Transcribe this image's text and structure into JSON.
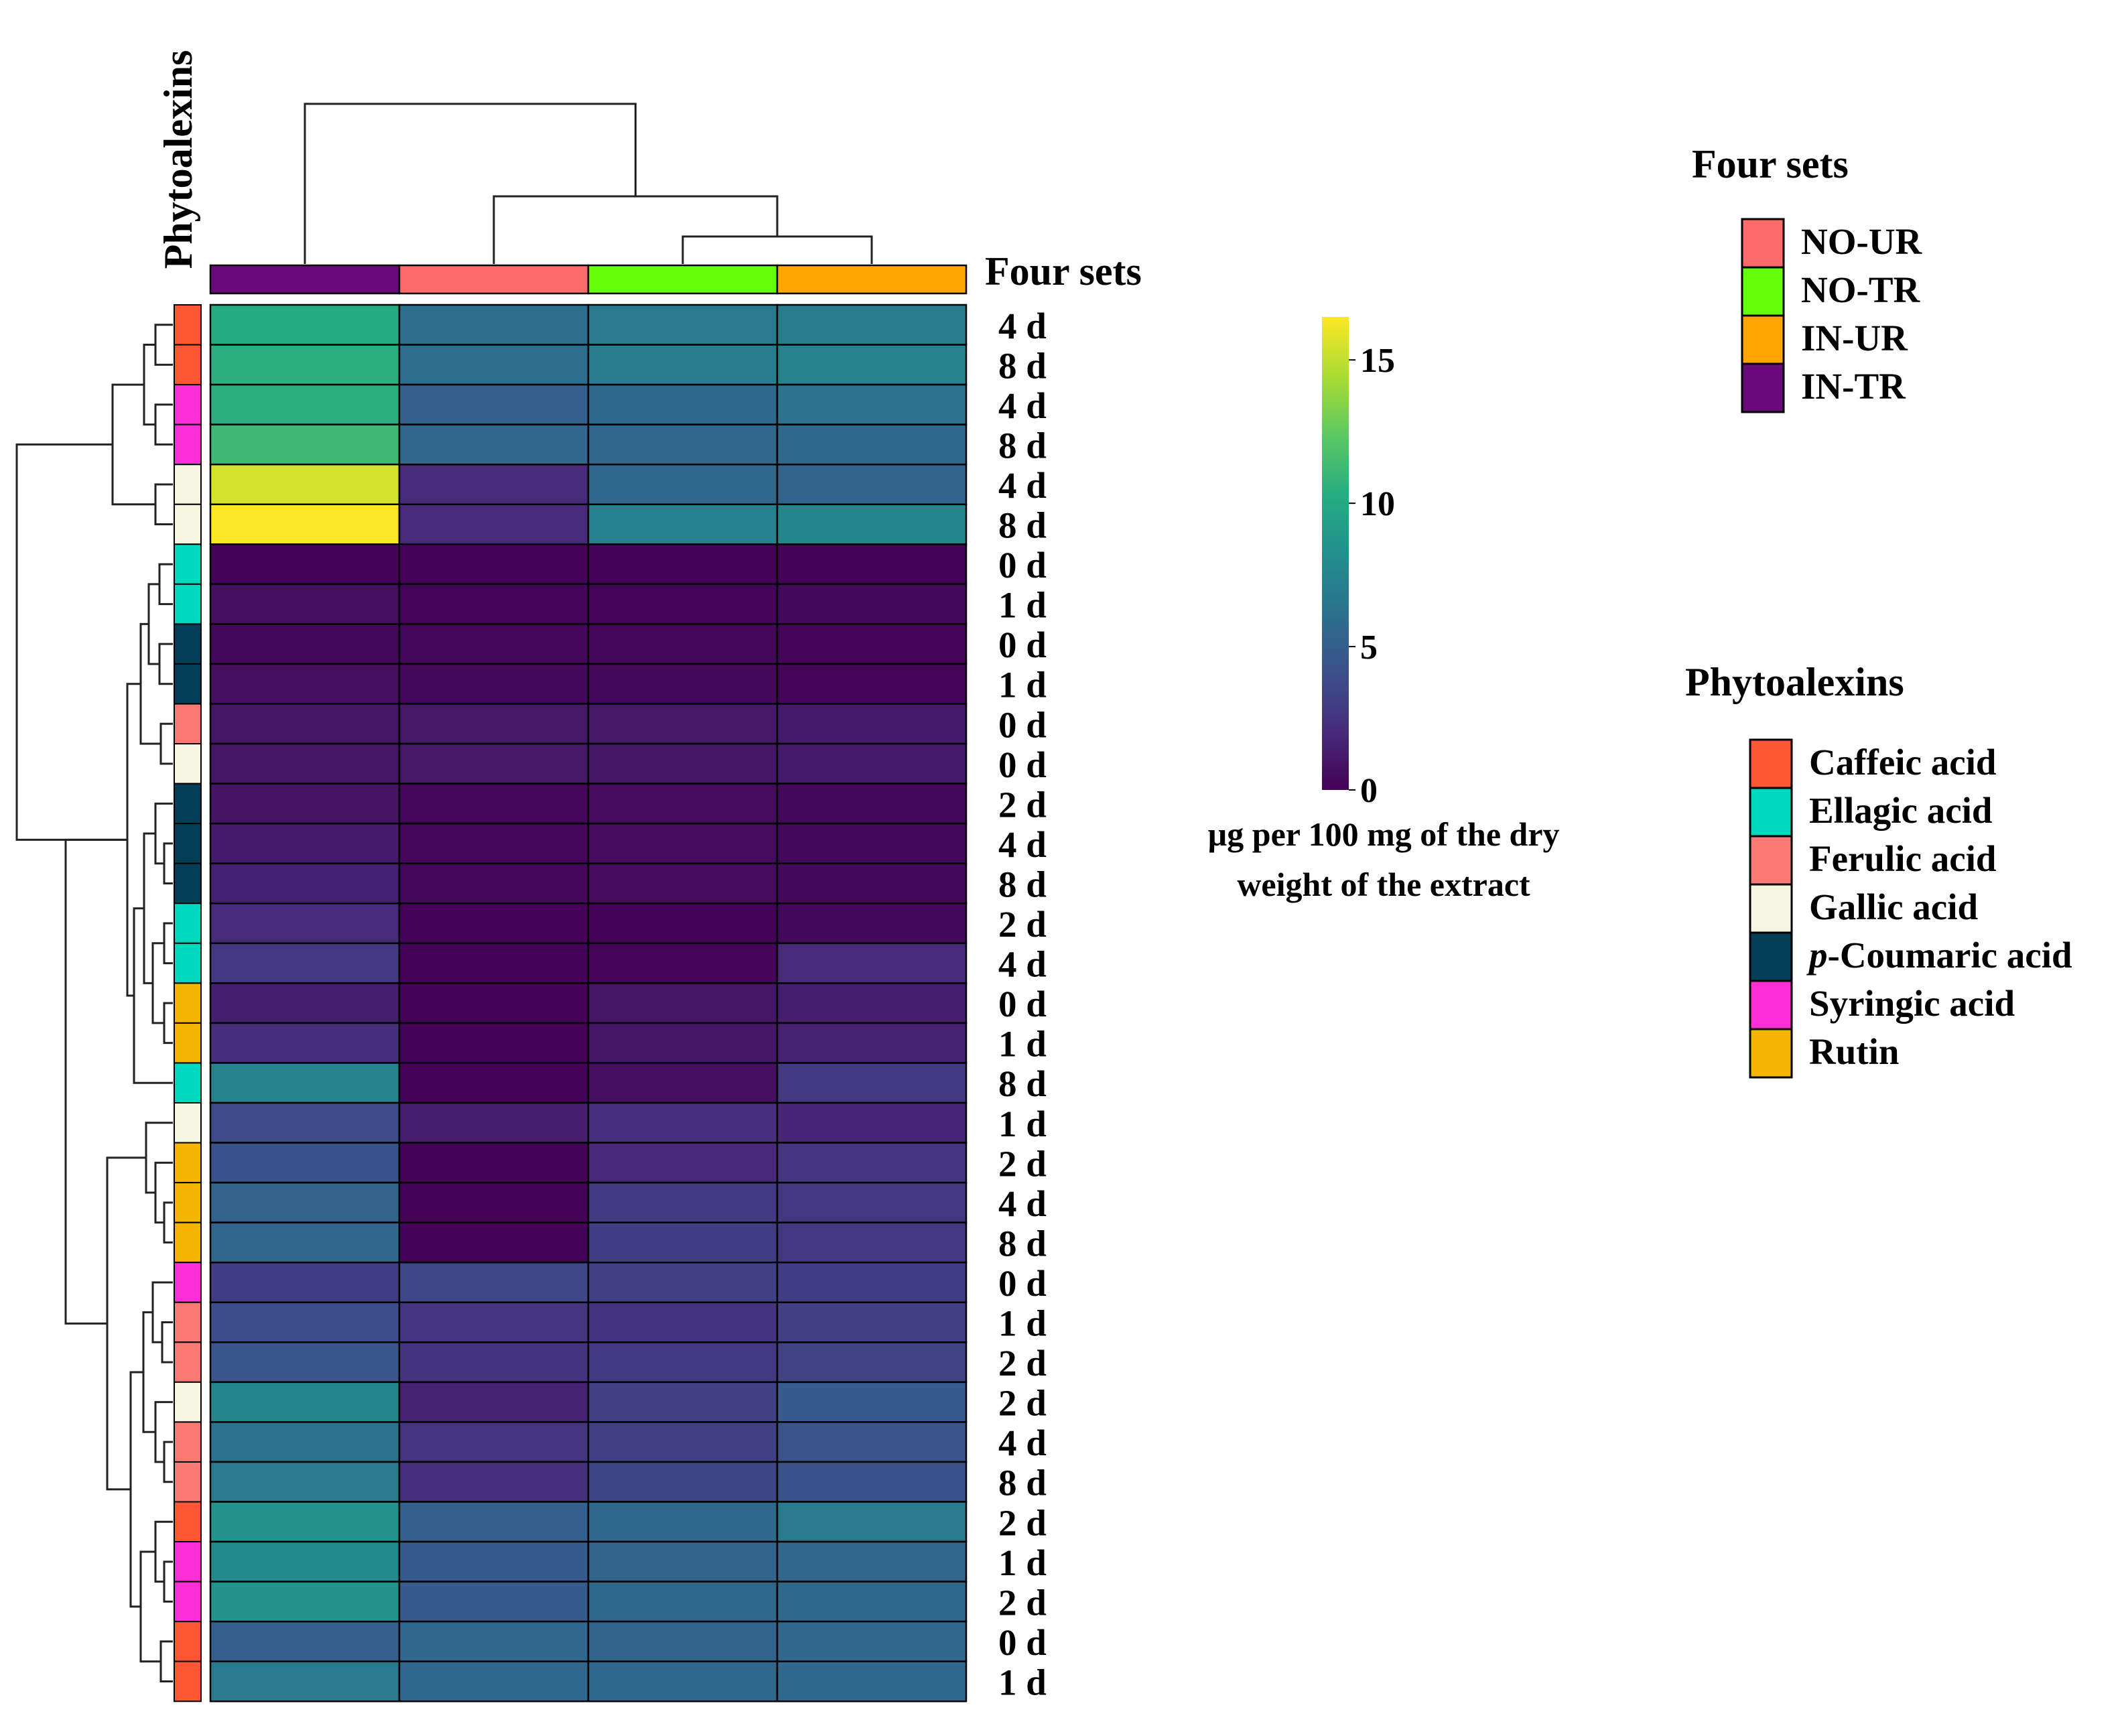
{
  "chart_data": {
    "type": "heatmap",
    "columns": [
      {
        "label": "IN-TR",
        "group_color": "#6A0A7A"
      },
      {
        "label": "NO-UR",
        "group_color": "#FF6B6B"
      },
      {
        "label": "NO-TR",
        "group_color": "#66FF0A"
      },
      {
        "label": "IN-UR",
        "group_color": "#FFA500"
      }
    ],
    "column_annotation_title": "Four sets",
    "row_annotation_title": "Phytoalexins",
    "rows": [
      {
        "label": "4 d",
        "compound": "Caffeic acid",
        "values": [
          10.2,
          6.0,
          6.8,
          6.9
        ]
      },
      {
        "label": "8 d",
        "compound": "Caffeic acid",
        "values": [
          10.5,
          6.0,
          7.0,
          7.3
        ]
      },
      {
        "label": "4 d",
        "compound": "Syringic acid",
        "values": [
          10.5,
          5.0,
          5.6,
          6.3
        ]
      },
      {
        "label": "8 d",
        "compound": "Syringic acid",
        "values": [
          11.2,
          5.5,
          5.5,
          5.6
        ]
      },
      {
        "label": "4 d",
        "compound": "Gallic acid",
        "values": [
          15.5,
          2.0,
          5.6,
          5.3
        ]
      },
      {
        "label": "8 d",
        "compound": "Gallic acid",
        "values": [
          16.5,
          2.0,
          7.2,
          7.6
        ]
      },
      {
        "label": "0 d",
        "compound": "Ellagic acid",
        "values": [
          0.1,
          0.1,
          0.1,
          0.1
        ]
      },
      {
        "label": "1 d",
        "compound": "Ellagic acid",
        "values": [
          0.6,
          0.2,
          0.2,
          0.4
        ]
      },
      {
        "label": "0 d",
        "compound": "p-Coumaric acid",
        "values": [
          0.4,
          0.3,
          0.3,
          0.2
        ]
      },
      {
        "label": "1 d",
        "compound": "p-Coumaric acid",
        "values": [
          0.6,
          0.4,
          0.4,
          0.2
        ]
      },
      {
        "label": "0 d",
        "compound": "Ferulic acid",
        "values": [
          1.0,
          1.1,
          1.1,
          1.2
        ]
      },
      {
        "label": "0 d",
        "compound": "Gallic acid",
        "values": [
          1.0,
          1.1,
          1.0,
          1.2
        ]
      },
      {
        "label": "2 d",
        "compound": "p-Coumaric acid",
        "values": [
          0.9,
          0.3,
          0.5,
          0.4
        ]
      },
      {
        "label": "4 d",
        "compound": "p-Coumaric acid",
        "values": [
          1.2,
          0.3,
          0.5,
          0.4
        ]
      },
      {
        "label": "8 d",
        "compound": "p-Coumaric acid",
        "values": [
          1.5,
          0.3,
          0.5,
          0.4
        ]
      },
      {
        "label": "2 d",
        "compound": "Ellagic acid",
        "values": [
          2.0,
          0.1,
          0.1,
          0.4
        ]
      },
      {
        "label": "4 d",
        "compound": "Ellagic acid",
        "values": [
          2.7,
          0.1,
          0.2,
          2.0
        ]
      },
      {
        "label": "0 d",
        "compound": "Rutin",
        "values": [
          1.4,
          0.1,
          1.0,
          1.4
        ]
      },
      {
        "label": "1 d",
        "compound": "Rutin",
        "values": [
          2.2,
          0.1,
          1.0,
          1.6
        ]
      },
      {
        "label": "8 d",
        "compound": "Ellagic acid",
        "values": [
          7.3,
          0.1,
          0.6,
          2.8
        ]
      },
      {
        "label": "1 d",
        "compound": "Gallic acid",
        "values": [
          3.8,
          1.4,
          2.3,
          1.8
        ]
      },
      {
        "label": "2 d",
        "compound": "Rutin",
        "values": [
          4.2,
          0.1,
          1.9,
          2.6
        ]
      },
      {
        "label": "4 d",
        "compound": "Rutin",
        "values": [
          5.2,
          0.1,
          2.9,
          2.7
        ]
      },
      {
        "label": "8 d",
        "compound": "Rutin",
        "values": [
          5.5,
          0.1,
          3.0,
          2.7
        ]
      },
      {
        "label": "0 d",
        "compound": "Syringic acid",
        "values": [
          3.0,
          3.6,
          3.2,
          3.0
        ]
      },
      {
        "label": "1 d",
        "compound": "Ferulic acid",
        "values": [
          3.9,
          2.6,
          2.5,
          3.2
        ]
      },
      {
        "label": "2 d",
        "compound": "Ferulic acid",
        "values": [
          4.4,
          2.5,
          2.8,
          3.3
        ]
      },
      {
        "label": "2 d",
        "compound": "Gallic acid",
        "values": [
          7.5,
          1.6,
          3.2,
          4.8
        ]
      },
      {
        "label": "4 d",
        "compound": "Ferulic acid",
        "values": [
          6.2,
          2.6,
          3.2,
          4.3
        ]
      },
      {
        "label": "8 d",
        "compound": "Ferulic acid",
        "values": [
          6.8,
          2.3,
          3.5,
          4.2
        ]
      },
      {
        "label": "2 d",
        "compound": "Caffeic acid",
        "values": [
          8.5,
          5.0,
          5.6,
          6.8
        ]
      },
      {
        "label": "1 d",
        "compound": "Syringic acid",
        "values": [
          8.0,
          4.8,
          5.3,
          5.5
        ]
      },
      {
        "label": "2 d",
        "compound": "Syringic acid",
        "values": [
          8.5,
          4.8,
          5.6,
          5.7
        ]
      },
      {
        "label": "0 d",
        "compound": "Caffeic acid",
        "values": [
          5.0,
          5.5,
          5.3,
          5.5
        ]
      },
      {
        "label": "1 d",
        "compound": "Caffeic acid",
        "values": [
          6.8,
          5.6,
          5.6,
          5.7
        ]
      }
    ],
    "colorbar": {
      "ticks": [
        0,
        5,
        10,
        15
      ],
      "min": 0,
      "max": 16.5
    },
    "colorbar_caption": [
      "µg per 100 mg of the dry",
      "weight of the extract"
    ],
    "colormap": [
      "#440154",
      "#472c7a",
      "#3b518b",
      "#2c718e",
      "#21908d",
      "#27ad81",
      "#5cc863",
      "#aadc32",
      "#fde725"
    ],
    "legend_sets": [
      {
        "label": "NO-UR",
        "color": "#FF6B6B"
      },
      {
        "label": "NO-TR",
        "color": "#66FF0A"
      },
      {
        "label": "IN-UR",
        "color": "#FFA500"
      },
      {
        "label": "IN-TR",
        "color": "#6A0A7A"
      }
    ],
    "legend_compounds": [
      {
        "label": "Caffeic acid",
        "color": "#FF5733"
      },
      {
        "label": "Ellagic acid",
        "color": "#00D8BF"
      },
      {
        "label": "Ferulic acid",
        "color": "#FA7A73"
      },
      {
        "label": "Gallic acid",
        "color": "#F6F5E0"
      },
      {
        "label": "-Coumaric acid",
        "prefix": "p",
        "color": "#023E58"
      },
      {
        "label": "Syringic acid",
        "color": "#FF2FD8"
      },
      {
        "label": "Rutin",
        "color": "#F4B400"
      }
    ]
  }
}
